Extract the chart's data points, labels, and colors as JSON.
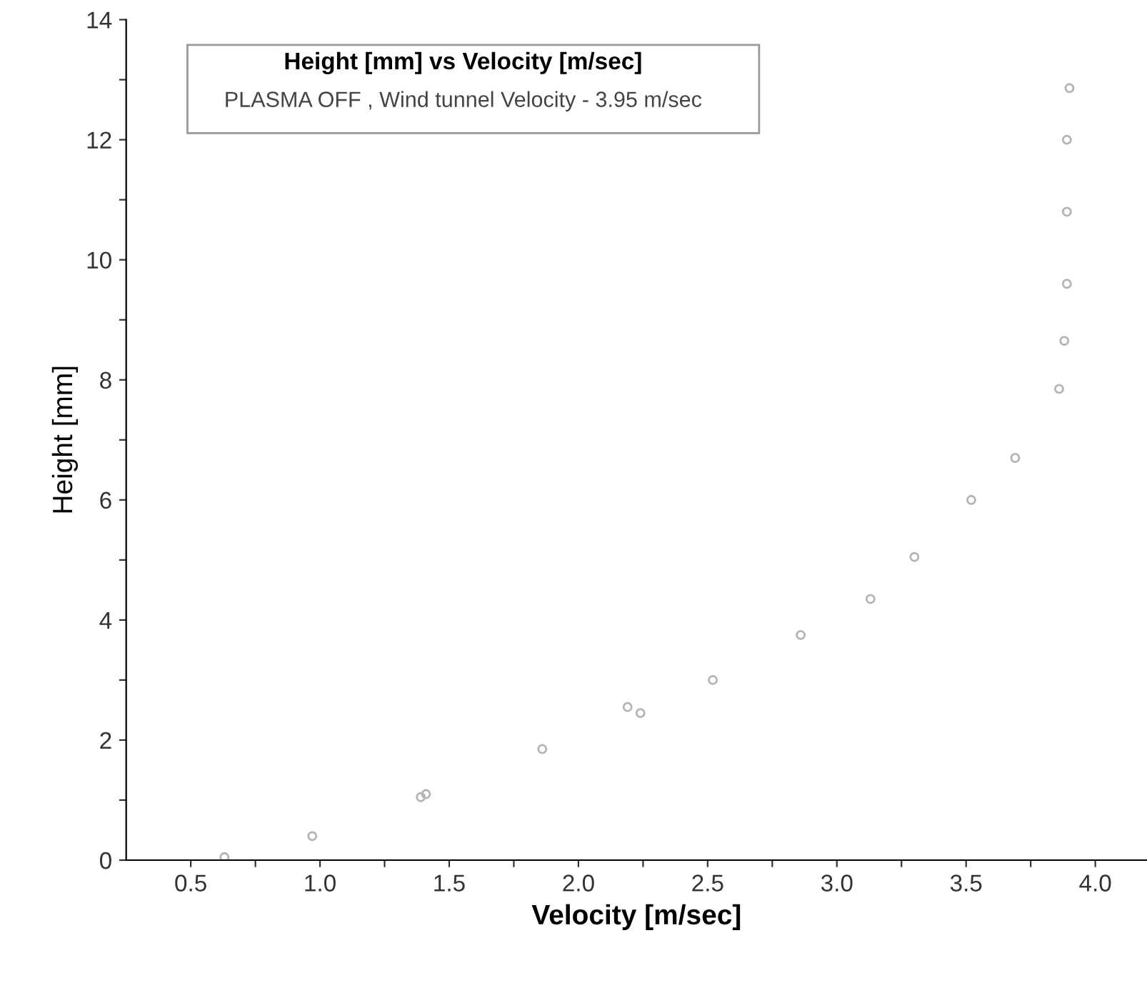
{
  "chart_data": {
    "type": "scatter",
    "title": "Height [mm] vs Velocity [m/sec]",
    "annotations": [
      "PLASMA OFF , Wind tunnel Velocity - 3.95 m/sec"
    ],
    "xlabel": "Velocity [m/sec]",
    "ylabel": "Height [mm]",
    "series": [
      {
        "color": "#b4b4b4",
        "x": [
          0.63,
          0.97,
          1.39,
          1.41,
          1.86,
          2.19,
          2.24,
          2.52,
          2.86,
          3.13,
          3.3,
          3.52,
          3.69,
          3.86,
          3.88,
          3.89,
          3.89,
          3.89,
          3.9
        ],
        "values": [
          0.05,
          0.4,
          1.05,
          1.1,
          1.85,
          2.55,
          2.45,
          3.0,
          3.75,
          4.35,
          5.05,
          6.0,
          6.7,
          7.85,
          8.65,
          9.6,
          10.8,
          12.0,
          12.86
        ]
      }
    ],
    "marker": "circle",
    "grid": false,
    "xlim": [
      0.25,
      4.2
    ],
    "ylim": [
      0,
      14
    ],
    "xticks": [
      0.5,
      {
        "value": 0.75,
        "label": null
      },
      {
        "value": 1,
        "label": "1.0"
      },
      {
        "value": 1.25,
        "label": null
      },
      1.5,
      {
        "value": 1.75,
        "label": null
      },
      {
        "value": 2,
        "label": "2.0"
      },
      {
        "value": 2.25,
        "label": null
      },
      2.5,
      {
        "value": 2.75,
        "label": null
      },
      {
        "value": 3,
        "label": "3.0"
      },
      {
        "value": 3.25,
        "label": null
      },
      3.5,
      {
        "value": 3.75,
        "label": null
      },
      {
        "value": 4,
        "label": "4.0"
      }
    ],
    "yticks": [
      0,
      {
        "value": 1,
        "label": null
      },
      2,
      {
        "value": 3,
        "label": null
      },
      4,
      {
        "value": 5,
        "label": null
      },
      6,
      {
        "value": 7,
        "label": null
      },
      8,
      {
        "value": 9,
        "label": null
      },
      10,
      {
        "value": 11,
        "label": null
      },
      12,
      {
        "value": 13,
        "label": null
      },
      14
    ]
  }
}
